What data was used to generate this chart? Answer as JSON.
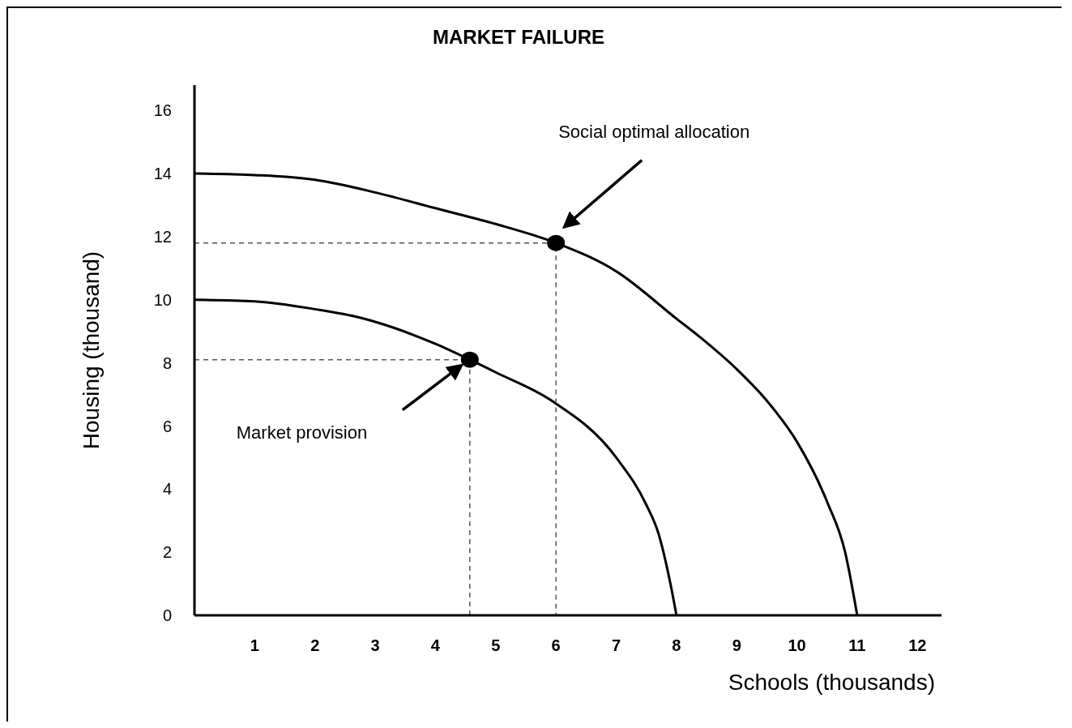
{
  "chart_data": {
    "type": "line",
    "title": "MARKET FAILURE",
    "xlabel": "Schools (thousands)",
    "ylabel": "Housing (thousand)",
    "xlim": [
      0,
      12.4
    ],
    "xticks": [
      1,
      2,
      3,
      4,
      5,
      6,
      7,
      8,
      9,
      10,
      11,
      12
    ],
    "ylim": [
      0,
      16.8
    ],
    "yticks": [
      0,
      2,
      4,
      6,
      8,
      10,
      12,
      14,
      16
    ],
    "series": [
      {
        "color": "#000000",
        "line_style": "solid",
        "marker": "none",
        "x": [
          0,
          1,
          2,
          3,
          4,
          5,
          6,
          7,
          8,
          8.4,
          9,
          9.5,
          10,
          10.5,
          10.8,
          11
        ],
        "values": [
          14,
          13.95,
          13.8,
          13.4,
          12.9,
          12.4,
          11.8,
          10.9,
          9.4,
          8.8,
          7.8,
          6.8,
          5.5,
          3.6,
          2,
          0
        ]
      },
      {
        "color": "#000000",
        "line_style": "solid",
        "marker": "none",
        "x": [
          0,
          1,
          2,
          2.73,
          3,
          4,
          4.57,
          5,
          5.93,
          7,
          7.5,
          7.7,
          7.9,
          8
        ],
        "values": [
          10,
          9.95,
          9.7,
          9.44,
          9.3,
          8.6,
          8.1,
          7.7,
          6.8,
          5,
          3.5,
          2.6,
          1,
          0
        ]
      },
      {
        "color": "#555555",
        "line_style": "dashed",
        "marker": "none",
        "x": [
          0,
          6,
          6
        ],
        "values": [
          11.8,
          11.8,
          0
        ]
      },
      {
        "color": "#555555",
        "line_style": "dashed",
        "marker": "none",
        "x": [
          0,
          4.57,
          4.57
        ],
        "values": [
          8.1,
          8.1,
          0
        ]
      },
      {
        "type": "scatter",
        "color": "#000000",
        "marker": "circle",
        "x": [
          6,
          4.57
        ],
        "values": [
          11.8,
          8.1
        ]
      }
    ],
    "annotations": [
      "Social optimal allocation",
      "Market provision"
    ]
  }
}
